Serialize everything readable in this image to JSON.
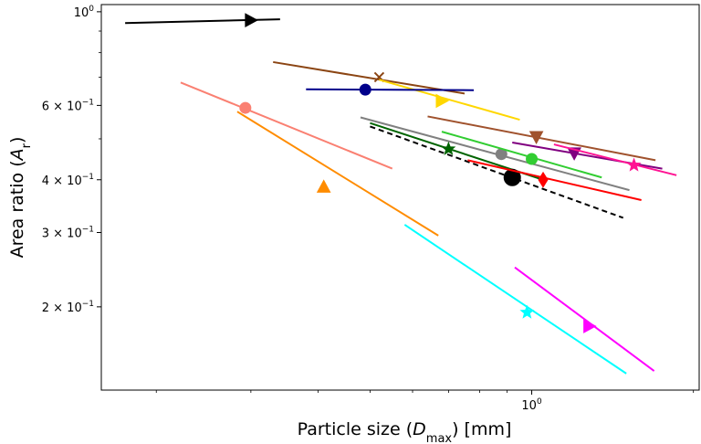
{
  "chart_data": {
    "type": "line",
    "title": "",
    "xlabel": "Particle size (D_max) [mm]",
    "xlabel_parts": {
      "prefix": "Particle size (",
      "var": "D",
      "sub": "max",
      "suffix": ") [mm]"
    },
    "ylabel": "Area ratio (A_r)",
    "ylabel_parts": {
      "prefix": "Area ratio (",
      "var": "A",
      "sub": "r",
      "suffix": ")"
    },
    "x_scale": "log",
    "y_scale": "log",
    "xlim": [
      0.158,
      2.05
    ],
    "ylim": [
      0.127,
      1.04
    ],
    "grid": false,
    "legend": "none",
    "x_ticks": [
      {
        "value": 1.0,
        "base": "10",
        "exp": "0"
      }
    ],
    "y_ticks": [
      {
        "value": 1.0,
        "mant": "",
        "base": "10",
        "exp": "0"
      },
      {
        "value": 0.6,
        "mant": "6 × ",
        "base": "10",
        "exp": "−1"
      },
      {
        "value": 0.4,
        "mant": "4 × ",
        "base": "10",
        "exp": "−1"
      },
      {
        "value": 0.3,
        "mant": "3 × ",
        "base": "10",
        "exp": "−1"
      },
      {
        "value": 0.2,
        "mant": "2 × ",
        "base": "10",
        "exp": "−1"
      }
    ],
    "series": [
      {
        "color": "#000000",
        "marker": "triangle-right",
        "x": [
          0.175,
          0.34
        ],
        "y": [
          0.94,
          0.96
        ],
        "mx": 0.3,
        "my": 0.955
      },
      {
        "color": "#8B4513",
        "marker": "x",
        "x": [
          0.33,
          0.75
        ],
        "y": [
          0.76,
          0.64
        ],
        "mx": 0.52,
        "my": 0.7
      },
      {
        "color": "#FFD700",
        "marker": "triangle-right",
        "x": [
          0.52,
          0.95
        ],
        "y": [
          0.69,
          0.555
        ],
        "mx": 0.68,
        "my": 0.615
      },
      {
        "color": "#00008B",
        "marker": "circle",
        "x": [
          0.38,
          0.78
        ],
        "y": [
          0.655,
          0.652
        ],
        "mx": 0.49,
        "my": 0.654
      },
      {
        "color": "#FA8072",
        "marker": "circle",
        "x": [
          0.222,
          0.55
        ],
        "y": [
          0.68,
          0.425
        ],
        "mx": 0.293,
        "my": 0.592
      },
      {
        "color": "#FF8C00",
        "marker": "triangle-up",
        "x": [
          0.283,
          0.67
        ],
        "y": [
          0.58,
          0.295
        ],
        "mx": 0.41,
        "my": 0.385
      },
      {
        "color": "#A0522D",
        "marker": "triangle-down",
        "x": [
          0.64,
          1.7
        ],
        "y": [
          0.565,
          0.445
        ],
        "mx": 1.02,
        "my": 0.505
      },
      {
        "color": "#808080",
        "marker": "circle",
        "x": [
          0.48,
          1.52
        ],
        "y": [
          0.562,
          0.378
        ],
        "mx": 0.878,
        "my": 0.46
      },
      {
        "color": "#006400",
        "marker": "star",
        "x": [
          0.5,
          1.05
        ],
        "y": [
          0.545,
          0.4
        ],
        "mx": 0.7,
        "my": 0.473
      },
      {
        "color": "#32CD32",
        "marker": "circle",
        "x": [
          0.68,
          1.35
        ],
        "y": [
          0.52,
          0.405
        ],
        "mx": 1.0,
        "my": 0.448
      },
      {
        "color": "#000000",
        "marker": "circle",
        "dashed": true,
        "x": [
          0.5,
          1.48
        ],
        "y": [
          0.535,
          0.325
        ],
        "mx": 0.92,
        "my": 0.405
      },
      {
        "color": "#FF0000",
        "marker": "diamond",
        "x": [
          0.76,
          1.6
        ],
        "y": [
          0.445,
          0.358
        ],
        "mx": 1.05,
        "my": 0.4
      },
      {
        "color": "#800080",
        "marker": "triangle-down",
        "x": [
          0.92,
          1.75
        ],
        "y": [
          0.49,
          0.425
        ],
        "mx": 1.2,
        "my": 0.462
      },
      {
        "color": "#FF1493",
        "marker": "star",
        "x": [
          1.1,
          1.86
        ],
        "y": [
          0.485,
          0.41
        ],
        "mx": 1.55,
        "my": 0.433
      },
      {
        "color": "#00FFFF",
        "marker": "star",
        "x": [
          0.58,
          1.5
        ],
        "y": [
          0.313,
          0.139
        ],
        "mx": 0.98,
        "my": 0.194
      },
      {
        "color": "#FF00FF",
        "marker": "triangle-right",
        "x": [
          0.93,
          1.69
        ],
        "y": [
          0.248,
          0.141
        ],
        "mx": 1.28,
        "my": 0.18
      }
    ]
  }
}
